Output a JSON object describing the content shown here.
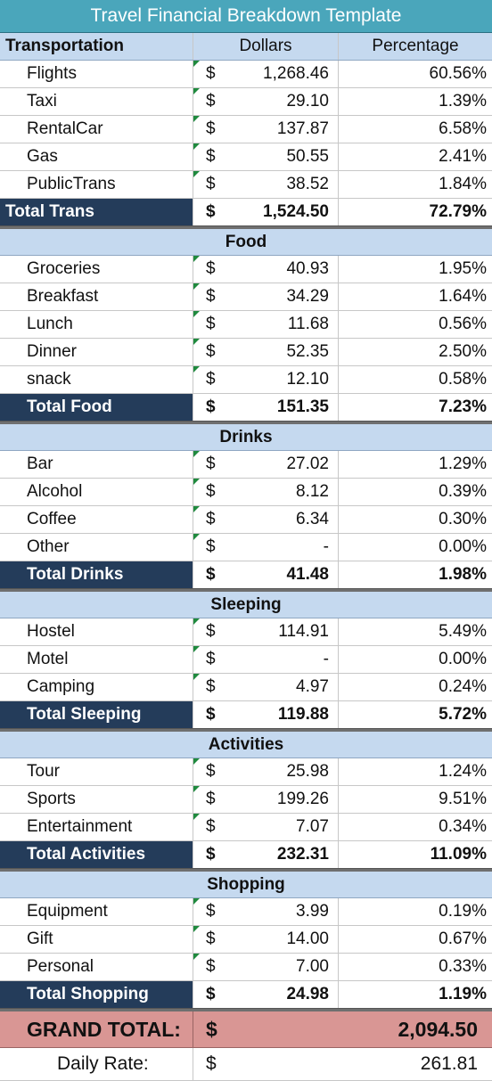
{
  "title": "Travel Financial Breakdown Template",
  "header": {
    "category": "Transportation",
    "dollars": "Dollars",
    "percentage": "Percentage"
  },
  "currency_symbol": "$",
  "transportation": {
    "items": [
      {
        "label": "Flights",
        "amount": "1,268.46",
        "pct": "60.56%"
      },
      {
        "label": "Taxi",
        "amount": "29.10",
        "pct": "1.39%"
      },
      {
        "label": "RentalCar",
        "amount": "137.87",
        "pct": "6.58%"
      },
      {
        "label": "Gas",
        "amount": "50.55",
        "pct": "2.41%"
      },
      {
        "label": "PublicTrans",
        "amount": "38.52",
        "pct": "1.84%"
      }
    ],
    "total": {
      "label": "Total Trans",
      "amount": "1,524.50",
      "pct": "72.79%"
    }
  },
  "food": {
    "title": "Food",
    "items": [
      {
        "label": "Groceries",
        "amount": "40.93",
        "pct": "1.95%"
      },
      {
        "label": "Breakfast",
        "amount": "34.29",
        "pct": "1.64%"
      },
      {
        "label": "Lunch",
        "amount": "11.68",
        "pct": "0.56%"
      },
      {
        "label": "Dinner",
        "amount": "52.35",
        "pct": "2.50%"
      },
      {
        "label": "snack",
        "amount": "12.10",
        "pct": "0.58%"
      }
    ],
    "total": {
      "label": "Total Food",
      "amount": "151.35",
      "pct": "7.23%"
    }
  },
  "drinks": {
    "title": "Drinks",
    "items": [
      {
        "label": "Bar",
        "amount": "27.02",
        "pct": "1.29%"
      },
      {
        "label": "Alcohol",
        "amount": "8.12",
        "pct": "0.39%"
      },
      {
        "label": "Coffee",
        "amount": "6.34",
        "pct": "0.30%"
      },
      {
        "label": "Other",
        "amount": "-",
        "pct": "0.00%"
      }
    ],
    "total": {
      "label": "Total Drinks",
      "amount": "41.48",
      "pct": "1.98%"
    }
  },
  "sleeping": {
    "title": "Sleeping",
    "items": [
      {
        "label": "Hostel",
        "amount": "114.91",
        "pct": "5.49%"
      },
      {
        "label": "Motel",
        "amount": "-",
        "pct": "0.00%"
      },
      {
        "label": "Camping",
        "amount": "4.97",
        "pct": "0.24%"
      }
    ],
    "total": {
      "label": "Total Sleeping",
      "amount": "119.88",
      "pct": "5.72%"
    }
  },
  "activities": {
    "title": "Activities",
    "items": [
      {
        "label": "Tour",
        "amount": "25.98",
        "pct": "1.24%"
      },
      {
        "label": "Sports",
        "amount": "199.26",
        "pct": "9.51%"
      },
      {
        "label": "Entertainment",
        "amount": "7.07",
        "pct": "0.34%"
      }
    ],
    "total": {
      "label": "Total Activities",
      "amount": "232.31",
      "pct": "11.09%"
    }
  },
  "shopping": {
    "title": "Shopping",
    "items": [
      {
        "label": "Equipment",
        "amount": "3.99",
        "pct": "0.19%"
      },
      {
        "label": "Gift",
        "amount": "14.00",
        "pct": "0.67%"
      },
      {
        "label": "Personal",
        "amount": "7.00",
        "pct": "0.33%"
      }
    ],
    "total": {
      "label": "Total Shopping",
      "amount": "24.98",
      "pct": "1.19%"
    }
  },
  "grand_total": {
    "label": "GRAND TOTAL:",
    "amount": "2,094.50"
  },
  "daily_rate": {
    "label": "Daily Rate:",
    "amount": "261.81"
  },
  "colors": {
    "title_bg": "#4aa6bb",
    "header_bg": "#c5d9ef",
    "total_label_bg": "#243c5a",
    "grand_total_bg": "#d99694",
    "comment_marker": "#1f8a3e"
  }
}
